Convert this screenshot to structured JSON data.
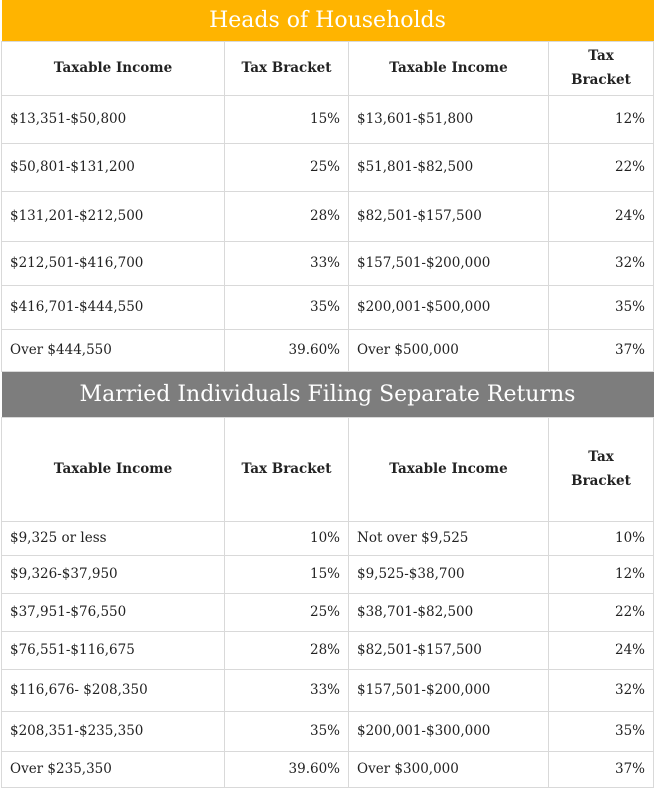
{
  "sections": [
    {
      "title": "Heads of Households",
      "headers": [
        "Taxable Income",
        "Tax Bracket",
        "Taxable Income",
        "Tax Bracket"
      ],
      "rows": [
        [
          "$13,351-$50,800",
          "15%",
          "$13,601-$51,800",
          "12%"
        ],
        [
          "$50,801-$131,200",
          "25%",
          "$51,801-$82,500",
          "22%"
        ],
        [
          "$131,201-$212,500",
          "28%",
          "$82,501-$157,500",
          "24%"
        ],
        [
          "$212,501-$416,700",
          "33%",
          "$157,501-$200,000",
          "32%"
        ],
        [
          "$416,701-$444,550",
          "35%",
          "$200,001-$500,000",
          "35%"
        ],
        [
          "Over $444,550",
          "39.60%",
          "Over $500,000",
          "37%"
        ]
      ]
    },
    {
      "title": "Married Individuals Filing Separate Returns",
      "headers": [
        "Taxable Income",
        "Tax Bracket",
        "Taxable Income",
        "Tax Bracket"
      ],
      "rows": [
        [
          "$9,325 or less",
          "10%",
          "Not over $9,525",
          "10%"
        ],
        [
          "$9,326-$37,950",
          "15%",
          "$9,525-$38,700",
          "12%"
        ],
        [
          "$37,951-$76,550",
          "25%",
          "$38,701-$82,500",
          "22%"
        ],
        [
          "$76,551-$116,675",
          "28%",
          "$82,501-$157,500",
          "24%"
        ],
        [
          "$116,676- $208,350",
          "33%",
          "$157,501-$200,000",
          "32%"
        ],
        [
          "$208,351-$235,350",
          "35%",
          "$200,001-$300,000",
          "35%"
        ],
        [
          "Over $235,350",
          "39.60%",
          "Over $300,000",
          "37%"
        ]
      ]
    }
  ],
  "colors": {
    "banner_gold": "#ffb400",
    "banner_gray": "#7d7d7d",
    "border": "#d9d9d9"
  }
}
